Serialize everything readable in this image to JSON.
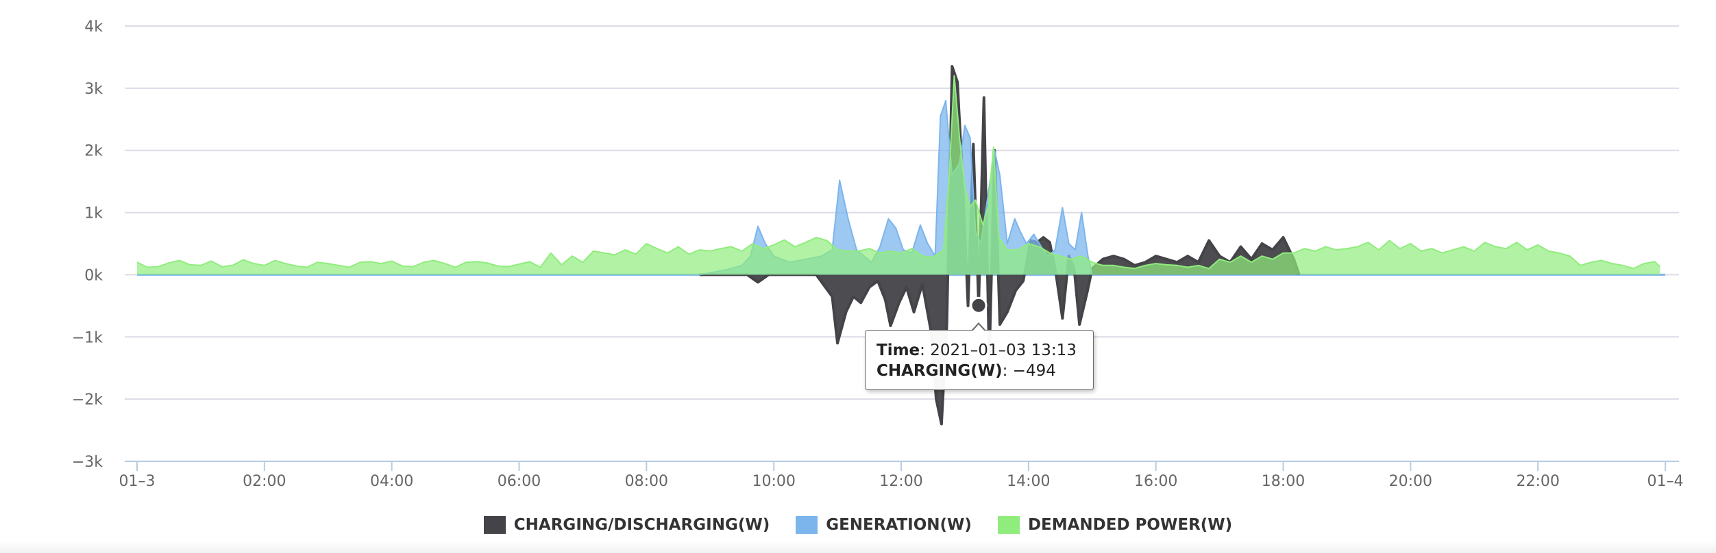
{
  "chart_data": {
    "type": "area",
    "title": "",
    "xlabel": "",
    "ylabel": "",
    "ylim": [
      -3000,
      4000
    ],
    "y_ticks": [
      4000,
      3000,
      2000,
      1000,
      0,
      -1000,
      -2000,
      -3000
    ],
    "y_tick_labels": [
      "4k",
      "3k",
      "2k",
      "1k",
      "0k",
      "−1k",
      "−2k",
      "−3k"
    ],
    "x_range": [
      "2021-01-03 00:00",
      "2021-01-04 00:00"
    ],
    "x_ticks": [
      "01–3",
      "02:00",
      "04:00",
      "06:00",
      "08:00",
      "10:00",
      "12:00",
      "14:00",
      "16:00",
      "18:00",
      "20:00",
      "22:00",
      "01–4"
    ],
    "grid": true,
    "legend_position": "bottom",
    "series": [
      {
        "name": "CHARGING/DISCHARGING(W)",
        "color": "#434348",
        "points": [
          [
            "08:50",
            0
          ],
          [
            "09:35",
            0
          ],
          [
            "09:45",
            -120
          ],
          [
            "09:55",
            0
          ],
          [
            "10:40",
            0
          ],
          [
            "10:55",
            -350
          ],
          [
            "11:00",
            -1100
          ],
          [
            "11:08",
            -600
          ],
          [
            "11:15",
            -350
          ],
          [
            "11:22",
            -450
          ],
          [
            "11:30",
            -200
          ],
          [
            "11:38",
            -100
          ],
          [
            "11:45",
            -400
          ],
          [
            "11:50",
            -820
          ],
          [
            "11:58",
            -450
          ],
          [
            "12:05",
            -200
          ],
          [
            "12:12",
            -600
          ],
          [
            "12:20",
            -150
          ],
          [
            "12:28",
            -900
          ],
          [
            "12:33",
            -2000
          ],
          [
            "12:38",
            -2400
          ],
          [
            "12:43",
            -800
          ],
          [
            "12:48",
            3350
          ],
          [
            "12:53",
            3100
          ],
          [
            "12:58",
            1500
          ],
          [
            "13:03",
            -500
          ],
          [
            "13:08",
            2100
          ],
          [
            "13:13",
            -494
          ],
          [
            "13:18",
            2850
          ],
          [
            "13:23",
            -1400
          ],
          [
            "13:28",
            2000
          ],
          [
            "13:33",
            -800
          ],
          [
            "13:40",
            -600
          ],
          [
            "13:48",
            -250
          ],
          [
            "13:55",
            -100
          ],
          [
            "14:02",
            550
          ],
          [
            "14:08",
            520
          ],
          [
            "14:14",
            600
          ],
          [
            "14:20",
            520
          ],
          [
            "14:26",
            0
          ],
          [
            "14:32",
            -700
          ],
          [
            "14:38",
            300
          ],
          [
            "14:43",
            100
          ],
          [
            "14:48",
            -800
          ],
          [
            "14:55",
            -300
          ],
          [
            "15:00",
            100
          ],
          [
            "15:10",
            250
          ],
          [
            "15:20",
            300
          ],
          [
            "15:30",
            250
          ],
          [
            "15:40",
            150
          ],
          [
            "15:50",
            200
          ],
          [
            "16:00",
            300
          ],
          [
            "16:10",
            250
          ],
          [
            "16:20",
            200
          ],
          [
            "16:30",
            300
          ],
          [
            "16:40",
            200
          ],
          [
            "16:50",
            550
          ],
          [
            "17:00",
            300
          ],
          [
            "17:10",
            200
          ],
          [
            "17:20",
            450
          ],
          [
            "17:30",
            250
          ],
          [
            "17:40",
            500
          ],
          [
            "17:50",
            400
          ],
          [
            "18:00",
            600
          ],
          [
            "18:10",
            250
          ],
          [
            "18:15",
            0
          ]
        ]
      },
      {
        "name": "GENERATION(W)",
        "color": "#7cb5ec",
        "points": [
          [
            "08:50",
            0
          ],
          [
            "09:15",
            80
          ],
          [
            "09:30",
            150
          ],
          [
            "09:38",
            300
          ],
          [
            "09:45",
            780
          ],
          [
            "09:52",
            500
          ],
          [
            "10:00",
            300
          ],
          [
            "10:15",
            200
          ],
          [
            "10:30",
            250
          ],
          [
            "10:45",
            300
          ],
          [
            "10:55",
            400
          ],
          [
            "11:02",
            1520
          ],
          [
            "11:10",
            900
          ],
          [
            "11:18",
            400
          ],
          [
            "11:25",
            300
          ],
          [
            "11:32",
            200
          ],
          [
            "11:40",
            450
          ],
          [
            "11:48",
            900
          ],
          [
            "11:55",
            750
          ],
          [
            "12:02",
            400
          ],
          [
            "12:10",
            350
          ],
          [
            "12:18",
            800
          ],
          [
            "12:25",
            500
          ],
          [
            "12:32",
            300
          ],
          [
            "12:37",
            2550
          ],
          [
            "12:42",
            2800
          ],
          [
            "12:48",
            1600
          ],
          [
            "12:55",
            1800
          ],
          [
            "13:00",
            2400
          ],
          [
            "13:05",
            2200
          ],
          [
            "13:10",
            700
          ],
          [
            "13:15",
            500
          ],
          [
            "13:22",
            1300
          ],
          [
            "13:28",
            2000
          ],
          [
            "13:33",
            1600
          ],
          [
            "13:40",
            500
          ],
          [
            "13:47",
            900
          ],
          [
            "13:52",
            700
          ],
          [
            "13:58",
            500
          ],
          [
            "14:05",
            650
          ],
          [
            "14:12",
            450
          ],
          [
            "14:18",
            300
          ],
          [
            "14:25",
            400
          ],
          [
            "14:32",
            1080
          ],
          [
            "14:38",
            500
          ],
          [
            "14:44",
            400
          ],
          [
            "14:50",
            1000
          ],
          [
            "14:56",
            300
          ],
          [
            "15:00",
            0
          ]
        ]
      },
      {
        "name": "DEMANDED POWER(W)",
        "color": "#90ed7d",
        "points": [
          [
            "00:00",
            200
          ],
          [
            "00:10",
            120
          ],
          [
            "00:20",
            130
          ],
          [
            "00:30",
            190
          ],
          [
            "00:40",
            230
          ],
          [
            "00:50",
            160
          ],
          [
            "01:00",
            150
          ],
          [
            "01:10",
            220
          ],
          [
            "01:20",
            130
          ],
          [
            "01:30",
            150
          ],
          [
            "01:40",
            240
          ],
          [
            "01:50",
            180
          ],
          [
            "02:00",
            150
          ],
          [
            "02:10",
            230
          ],
          [
            "02:20",
            180
          ],
          [
            "02:30",
            140
          ],
          [
            "02:40",
            120
          ],
          [
            "02:50",
            200
          ],
          [
            "03:00",
            180
          ],
          [
            "03:10",
            150
          ],
          [
            "03:20",
            120
          ],
          [
            "03:30",
            200
          ],
          [
            "03:40",
            210
          ],
          [
            "03:50",
            180
          ],
          [
            "04:00",
            220
          ],
          [
            "04:10",
            140
          ],
          [
            "04:20",
            130
          ],
          [
            "04:30",
            200
          ],
          [
            "04:40",
            230
          ],
          [
            "04:50",
            180
          ],
          [
            "05:00",
            120
          ],
          [
            "05:10",
            200
          ],
          [
            "05:20",
            210
          ],
          [
            "05:30",
            190
          ],
          [
            "05:40",
            140
          ],
          [
            "05:50",
            130
          ],
          [
            "06:00",
            170
          ],
          [
            "06:10",
            210
          ],
          [
            "06:20",
            120
          ],
          [
            "06:30",
            350
          ],
          [
            "06:40",
            160
          ],
          [
            "06:50",
            300
          ],
          [
            "07:00",
            200
          ],
          [
            "07:10",
            380
          ],
          [
            "07:20",
            350
          ],
          [
            "07:30",
            320
          ],
          [
            "07:40",
            400
          ],
          [
            "07:50",
            330
          ],
          [
            "08:00",
            500
          ],
          [
            "08:10",
            420
          ],
          [
            "08:20",
            350
          ],
          [
            "08:30",
            450
          ],
          [
            "08:40",
            330
          ],
          [
            "08:50",
            400
          ],
          [
            "09:00",
            380
          ],
          [
            "09:10",
            420
          ],
          [
            "09:20",
            450
          ],
          [
            "09:30",
            380
          ],
          [
            "09:40",
            500
          ],
          [
            "09:50",
            420
          ],
          [
            "10:00",
            480
          ],
          [
            "10:10",
            560
          ],
          [
            "10:20",
            450
          ],
          [
            "10:30",
            520
          ],
          [
            "10:40",
            600
          ],
          [
            "10:50",
            550
          ],
          [
            "11:00",
            400
          ],
          [
            "11:10",
            380
          ],
          [
            "11:20",
            380
          ],
          [
            "11:30",
            420
          ],
          [
            "11:40",
            350
          ],
          [
            "11:50",
            380
          ],
          [
            "12:00",
            350
          ],
          [
            "12:10",
            420
          ],
          [
            "12:20",
            300
          ],
          [
            "12:30",
            280
          ],
          [
            "12:40",
            400
          ],
          [
            "12:45",
            1500
          ],
          [
            "12:50",
            3200
          ],
          [
            "12:55",
            2200
          ],
          [
            "13:00",
            1400
          ],
          [
            "13:05",
            1100
          ],
          [
            "13:10",
            1200
          ],
          [
            "13:17",
            800
          ],
          [
            "13:22",
            1100
          ],
          [
            "13:27",
            2050
          ],
          [
            "13:32",
            600
          ],
          [
            "13:40",
            400
          ],
          [
            "13:50",
            400
          ],
          [
            "14:00",
            500
          ],
          [
            "14:10",
            450
          ],
          [
            "14:20",
            350
          ],
          [
            "14:30",
            300
          ],
          [
            "14:40",
            250
          ],
          [
            "14:50",
            300
          ],
          [
            "15:00",
            200
          ],
          [
            "15:10",
            150
          ],
          [
            "15:20",
            150
          ],
          [
            "15:30",
            120
          ],
          [
            "15:40",
            100
          ],
          [
            "15:50",
            150
          ],
          [
            "16:00",
            180
          ],
          [
            "16:10",
            160
          ],
          [
            "16:20",
            150
          ],
          [
            "16:30",
            120
          ],
          [
            "16:40",
            150
          ],
          [
            "16:50",
            100
          ],
          [
            "17:00",
            250
          ],
          [
            "17:10",
            200
          ],
          [
            "17:20",
            300
          ],
          [
            "17:30",
            200
          ],
          [
            "17:40",
            300
          ],
          [
            "17:50",
            250
          ],
          [
            "18:00",
            350
          ],
          [
            "18:10",
            350
          ],
          [
            "18:20",
            420
          ],
          [
            "18:30",
            380
          ],
          [
            "18:40",
            450
          ],
          [
            "18:50",
            400
          ],
          [
            "19:00",
            420
          ],
          [
            "19:10",
            450
          ],
          [
            "19:20",
            520
          ],
          [
            "19:30",
            400
          ],
          [
            "19:40",
            550
          ],
          [
            "19:50",
            420
          ],
          [
            "20:00",
            500
          ],
          [
            "20:10",
            380
          ],
          [
            "20:20",
            420
          ],
          [
            "20:30",
            350
          ],
          [
            "20:40",
            400
          ],
          [
            "20:50",
            450
          ],
          [
            "21:00",
            380
          ],
          [
            "21:10",
            520
          ],
          [
            "21:20",
            450
          ],
          [
            "21:30",
            420
          ],
          [
            "21:40",
            520
          ],
          [
            "21:50",
            400
          ],
          [
            "22:00",
            480
          ],
          [
            "22:10",
            380
          ],
          [
            "22:20",
            350
          ],
          [
            "22:30",
            300
          ],
          [
            "22:40",
            150
          ],
          [
            "22:50",
            200
          ],
          [
            "23:00",
            230
          ],
          [
            "23:10",
            180
          ],
          [
            "23:20",
            150
          ],
          [
            "23:30",
            100
          ],
          [
            "23:40",
            180
          ],
          [
            "23:50",
            210
          ],
          [
            "23:55",
            130
          ]
        ]
      }
    ],
    "tooltip": {
      "time_label": "Time",
      "time_value": "2021–01–03 13:13",
      "series_label": "CHARGING(W)",
      "series_value": "−494",
      "x": "13:13",
      "y": -494
    }
  }
}
